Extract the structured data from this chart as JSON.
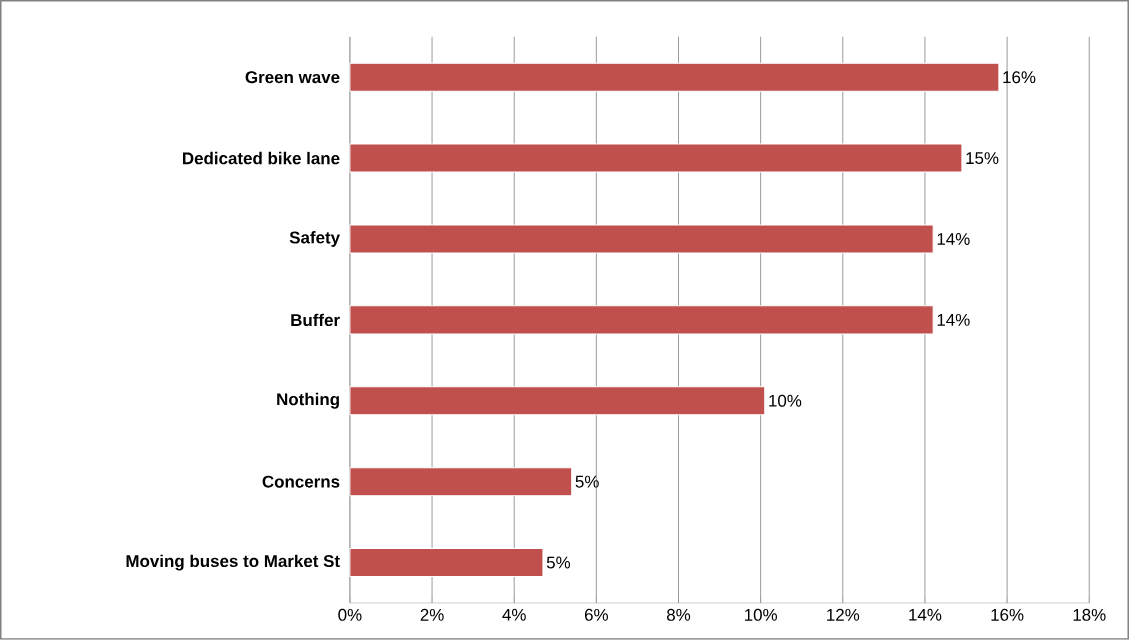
{
  "chart_data": {
    "type": "bar",
    "orientation": "horizontal",
    "categories": [
      "Green wave",
      "Dedicated bike lane",
      "Safety",
      "Buffer",
      "Nothing",
      "Concerns",
      "Moving buses to Market St"
    ],
    "values": [
      15.8,
      14.9,
      14.2,
      14.2,
      10.1,
      5.4,
      4.7
    ],
    "value_labels": [
      "16%",
      "15%",
      "14%",
      "14%",
      "10%",
      "5%",
      "5%"
    ],
    "color": "#c0504d",
    "xlim": [
      0,
      18
    ],
    "xticks": [
      {
        "value": 0,
        "label": "0%"
      },
      {
        "value": 2,
        "label": "2%"
      },
      {
        "value": 4,
        "label": "4%"
      },
      {
        "value": 6,
        "label": "6%"
      },
      {
        "value": 8,
        "label": "8%"
      },
      {
        "value": 10,
        "label": "10%"
      },
      {
        "value": 12,
        "label": "12%"
      },
      {
        "value": 14,
        "label": "14%"
      },
      {
        "value": 16,
        "label": "16%"
      },
      {
        "value": 18,
        "label": "18%"
      }
    ],
    "grid": "x"
  }
}
